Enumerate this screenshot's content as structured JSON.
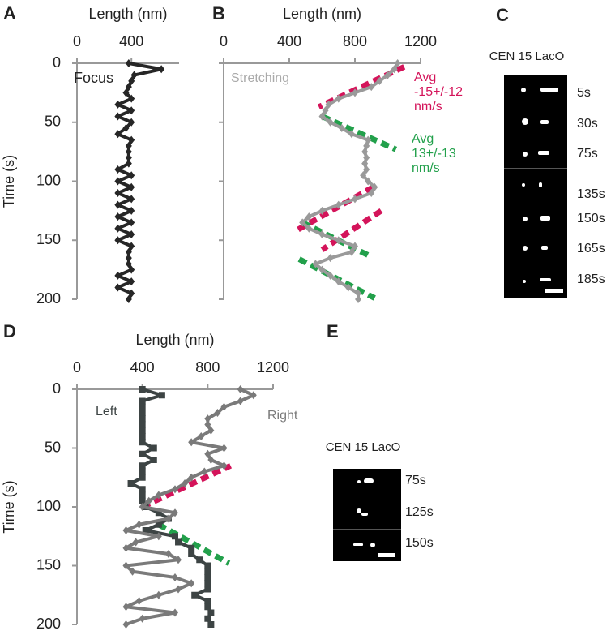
{
  "chart_data": [
    {
      "type": "line",
      "panel": "A",
      "xlabel": "Length (nm)",
      "ylabel": "Time (s)",
      "xlim": [
        0,
        750
      ],
      "xticks": [
        0,
        400
      ],
      "ylim": [
        0,
        200
      ],
      "yticks": [
        0,
        50,
        100,
        150,
        200
      ],
      "ytick_labels": true,
      "time": [
        0,
        5,
        10,
        15,
        20,
        25,
        30,
        35,
        40,
        45,
        50,
        55,
        60,
        65,
        70,
        75,
        80,
        85,
        90,
        95,
        100,
        105,
        110,
        115,
        120,
        125,
        130,
        135,
        140,
        145,
        150,
        155,
        160,
        165,
        170,
        175,
        180,
        185,
        190,
        195,
        200
      ],
      "series": [
        {
          "name": "Focus",
          "color": "#262626",
          "marker": "diamond",
          "values": [
            380,
            620,
            420,
            400,
            380,
            360,
            400,
            300,
            400,
            300,
            400,
            360,
            300,
            400,
            380,
            380,
            380,
            380,
            300,
            400,
            300,
            400,
            300,
            400,
            300,
            400,
            300,
            400,
            300,
            400,
            300,
            400,
            380,
            380,
            380,
            400,
            300,
            400,
            300,
            400,
            380
          ]
        }
      ]
    },
    {
      "type": "line",
      "panel": "B",
      "xlabel": "Length (nm)",
      "xlim": [
        0,
        1200
      ],
      "xticks": [
        0,
        400,
        800,
        1200
      ],
      "ylim": [
        0,
        200
      ],
      "yticks": [
        0,
        50,
        100,
        150,
        200
      ],
      "ytick_labels": false,
      "time": [
        0,
        5,
        10,
        15,
        20,
        25,
        30,
        35,
        40,
        45,
        50,
        55,
        60,
        65,
        70,
        75,
        80,
        85,
        90,
        95,
        100,
        105,
        110,
        115,
        120,
        125,
        130,
        135,
        140,
        145,
        150,
        155,
        160,
        165,
        170,
        175,
        180,
        185,
        190,
        195,
        200
      ],
      "series": [
        {
          "name": "Stretching",
          "color": "#9a9a9a",
          "marker": "diamond",
          "values": [
            1060,
            1040,
            1000,
            950,
            900,
            800,
            700,
            640,
            620,
            600,
            650,
            720,
            780,
            880,
            870,
            860,
            870,
            860,
            870,
            850,
            880,
            920,
            900,
            800,
            700,
            600,
            520,
            480,
            520,
            600,
            700,
            800,
            780,
            650,
            560,
            600,
            650,
            700,
            760,
            820,
            820
          ]
        }
      ],
      "fits": [
        {
          "color": "#d4145a",
          "length": [
            1100,
            580
          ],
          "time": [
            3,
            37
          ]
        },
        {
          "color": "#d4145a",
          "length": [
            910,
            440
          ],
          "time": [
            105,
            142
          ]
        },
        {
          "color": "#d4145a",
          "length": [
            960,
            600
          ],
          "time": [
            125,
            158
          ]
        },
        {
          "color": "#22a04b",
          "length": [
            600,
            1050
          ],
          "time": [
            45,
            73
          ]
        },
        {
          "color": "#22a04b",
          "length": [
            480,
            900
          ],
          "time": [
            135,
            164
          ]
        },
        {
          "color": "#22a04b",
          "length": [
            460,
            920
          ],
          "time": [
            166,
            199
          ]
        }
      ],
      "annotations": [
        {
          "color": "#d4145a",
          "lines": [
            "Avg",
            "-15+/-12",
            "nm/s"
          ]
        },
        {
          "color": "#22a04b",
          "lines": [
            "Avg",
            "13+/-13",
            "nm/s"
          ]
        }
      ]
    },
    {
      "type": "line",
      "panel": "D",
      "xlabel": "Length (nm)",
      "ylabel": "Time (s)",
      "xlim": [
        0,
        1200
      ],
      "xticks": [
        0,
        400,
        800,
        1200
      ],
      "ylim": [
        0,
        200
      ],
      "yticks": [
        0,
        50,
        100,
        150,
        200
      ],
      "ytick_labels": true,
      "time": [
        0,
        5,
        10,
        15,
        20,
        25,
        30,
        35,
        40,
        45,
        50,
        55,
        60,
        65,
        70,
        75,
        80,
        85,
        90,
        95,
        100,
        105,
        110,
        115,
        120,
        125,
        130,
        135,
        140,
        145,
        150,
        155,
        160,
        165,
        170,
        175,
        180,
        185,
        190,
        195,
        200
      ],
      "series": [
        {
          "name": "Left",
          "color": "#3d4444",
          "marker": "square",
          "values": [
            400,
            520,
            400,
            400,
            400,
            400,
            400,
            400,
            400,
            400,
            470,
            400,
            470,
            400,
            400,
            400,
            330,
            400,
            400,
            400,
            420,
            500,
            560,
            500,
            420,
            600,
            620,
            700,
            700,
            750,
            800,
            800,
            800,
            800,
            800,
            720,
            800,
            800,
            820,
            800,
            820
          ]
        },
        {
          "name": "Right",
          "color": "#7a7a7a",
          "marker": "diamond",
          "values": [
            1000,
            1080,
            1000,
            900,
            860,
            800,
            800,
            820,
            760,
            700,
            900,
            800,
            820,
            900,
            780,
            700,
            660,
            600,
            500,
            440,
            400,
            600,
            560,
            380,
            300,
            500,
            360,
            300,
            560,
            620,
            300,
            340,
            600,
            700,
            620,
            500,
            380,
            300,
            600,
            400,
            300
          ]
        }
      ],
      "fits": [
        {
          "color": "#d4145a",
          "length": [
            400,
            940
          ],
          "time": [
            100,
            65
          ]
        },
        {
          "color": "#22a04b",
          "length": [
            500,
            930
          ],
          "time": [
            115,
            148
          ]
        }
      ]
    }
  ],
  "images": [
    {
      "panel": "C",
      "title": "CEN 15 LacO",
      "frames": [
        "5s",
        "30s",
        "75s",
        "135s",
        "150s",
        "165s",
        "185s"
      ]
    },
    {
      "panel": "E",
      "title": "CEN 15 LacO",
      "frames": [
        "75s",
        "125s",
        "150s"
      ]
    }
  ]
}
